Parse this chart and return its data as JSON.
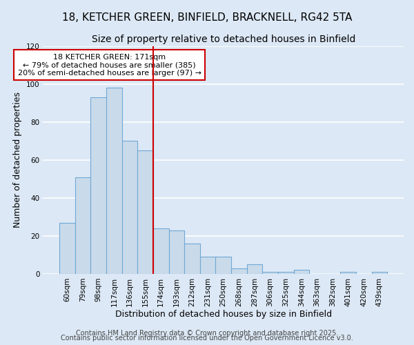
{
  "title": "18, KETCHER GREEN, BINFIELD, BRACKNELL, RG42 5TA",
  "subtitle": "Size of property relative to detached houses in Binfield",
  "xlabel": "Distribution of detached houses by size in Binfield",
  "ylabel": "Number of detached properties",
  "bar_labels": [
    "60sqm",
    "79sqm",
    "98sqm",
    "117sqm",
    "136sqm",
    "155sqm",
    "174sqm",
    "193sqm",
    "212sqm",
    "231sqm",
    "250sqm",
    "268sqm",
    "287sqm",
    "306sqm",
    "325sqm",
    "344sqm",
    "363sqm",
    "382sqm",
    "401sqm",
    "420sqm",
    "439sqm"
  ],
  "bar_heights": [
    27,
    51,
    93,
    98,
    70,
    65,
    24,
    23,
    16,
    9,
    9,
    3,
    5,
    1,
    1,
    2,
    0,
    0,
    1,
    0,
    1
  ],
  "bar_color": "#c9daea",
  "bar_edge_color": "#6fa8d6",
  "vline_x": 5.5,
  "vline_color": "#cc0000",
  "annotation_text": "18 KETCHER GREEN: 171sqm\n← 79% of detached houses are smaller (385)\n20% of semi-detached houses are larger (97) →",
  "annotation_box_color": "#ffffff",
  "annotation_box_edge_color": "#cc0000",
  "ylim": [
    0,
    120
  ],
  "yticks": [
    0,
    20,
    40,
    60,
    80,
    100,
    120
  ],
  "footer_line1": "Contains HM Land Registry data © Crown copyright and database right 2025.",
  "footer_line2": "Contains public sector information licensed under the Open Government Licence v3.0.",
  "background_color": "#dce8f5",
  "plot_bg_color": "#dce8f5",
  "grid_color": "#ffffff",
  "title_fontsize": 11,
  "subtitle_fontsize": 10,
  "axis_label_fontsize": 9,
  "tick_fontsize": 7.5,
  "annotation_fontsize": 8,
  "footer_fontsize": 7
}
